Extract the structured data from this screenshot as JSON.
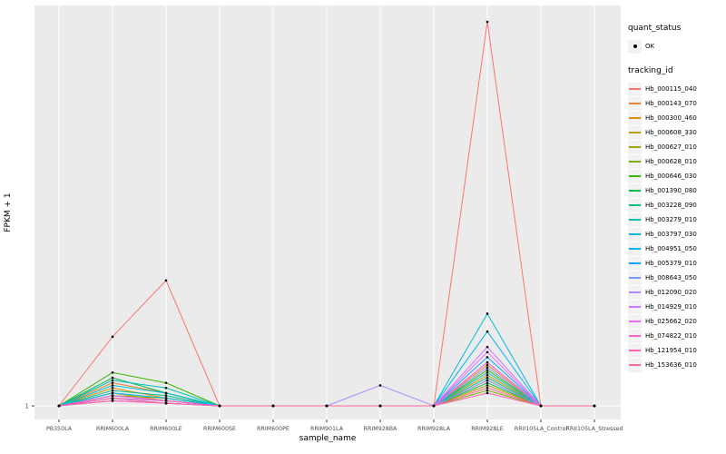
{
  "chart_data": {
    "type": "line",
    "title": "",
    "xlabel": "sample_name",
    "ylabel": "FPKM + 1",
    "ylim": [
      1,
      16.7
    ],
    "y_ticks": [
      {
        "value": 1,
        "label": "1"
      }
    ],
    "grid": true,
    "panel_bg": "#EBEBEB",
    "grid_color": "#FFFFFF",
    "point_color": "#000000",
    "tick_label_color": "#4D4D4D",
    "legend_position": "right",
    "categories": [
      "PB350LA",
      "RRIM600LA",
      "RRIM600LE",
      "RRIM600SE",
      "RRIM600PE",
      "RRIM901LA",
      "RRIM928BA",
      "RRIM928LA",
      "RRIM928LE",
      "RRII105LA_Control",
      "RRII105LA_Stressed"
    ],
    "legend": {
      "quant_status_title": "quant_status",
      "quant_ok_label": "OK",
      "tracking_id_title": "tracking_id"
    },
    "series": [
      {
        "name": "Hb_000115_040",
        "color": "#F8766D",
        "values": [
          1,
          3.7,
          5.9,
          1,
          1,
          1,
          1,
          1,
          16.0,
          1,
          1
        ]
      },
      {
        "name": "Hb_000143_070",
        "color": "#EA8331",
        "values": [
          1,
          1.9,
          1.5,
          1,
          1,
          1,
          1,
          1,
          2.6,
          1,
          1
        ]
      },
      {
        "name": "Hb_000300_460",
        "color": "#D89000",
        "values": [
          1,
          1.7,
          1.3,
          1,
          1,
          1,
          1,
          1,
          2.2,
          1,
          1
        ]
      },
      {
        "name": "Hb_000608_330",
        "color": "#C09B00",
        "values": [
          1,
          1.5,
          1.2,
          1,
          1,
          1,
          1,
          1,
          1.8,
          1,
          1
        ]
      },
      {
        "name": "Hb_000627_010",
        "color": "#A3A500",
        "values": [
          1,
          1.4,
          1.3,
          1,
          1,
          1,
          1,
          1,
          2.0,
          1,
          1
        ]
      },
      {
        "name": "Hb_000628_010",
        "color": "#7CAE00",
        "values": [
          1,
          1.3,
          1.2,
          1,
          1,
          1,
          1,
          1,
          1.6,
          1,
          1
        ]
      },
      {
        "name": "Hb_000646_030",
        "color": "#39B600",
        "values": [
          1,
          2.3,
          1.9,
          1,
          1,
          1,
          1,
          1,
          2.4,
          1,
          1
        ]
      },
      {
        "name": "Hb_001390_080",
        "color": "#00BB4E",
        "values": [
          1,
          2.1,
          1.5,
          1,
          1,
          1,
          1,
          1,
          1.9,
          1,
          1
        ]
      },
      {
        "name": "Hb_003228_090",
        "color": "#00C087",
        "values": [
          1,
          1.6,
          1.4,
          1,
          1,
          1,
          1,
          1,
          2.1,
          1,
          1
        ]
      },
      {
        "name": "Hb_003279_010",
        "color": "#00C0B2",
        "values": [
          1,
          2.0,
          1.7,
          1,
          1,
          1,
          1,
          1,
          2.3,
          1,
          1
        ]
      },
      {
        "name": "Hb_003797_030",
        "color": "#00BCD8",
        "values": [
          1,
          1.8,
          1.5,
          1,
          1,
          1,
          1,
          1,
          4.6,
          1,
          1
        ]
      },
      {
        "name": "Hb_004951_050",
        "color": "#00B4EF",
        "values": [
          1,
          1.5,
          1.3,
          1,
          1,
          1,
          1,
          1,
          3.9,
          1,
          1
        ]
      },
      {
        "name": "Hb_005379_010",
        "color": "#00A5FF",
        "values": [
          1,
          1.4,
          1.2,
          1,
          1,
          1,
          1,
          1,
          2.9,
          1,
          1
        ]
      },
      {
        "name": "Hb_008643_050",
        "color": "#7997FF",
        "values": [
          1,
          1.3,
          1.1,
          1,
          1,
          1,
          1,
          1,
          2.5,
          1,
          1
        ]
      },
      {
        "name": "Hb_012090_020",
        "color": "#AC88FF",
        "values": [
          1,
          1.2,
          1.1,
          1,
          1,
          1,
          1.8,
          1,
          2.0,
          1,
          1
        ]
      },
      {
        "name": "Hb_014929_010",
        "color": "#D277FF",
        "values": [
          1,
          1.3,
          1.2,
          1,
          1,
          1,
          1,
          1,
          3.3,
          1,
          1
        ]
      },
      {
        "name": "Hb_025662_020",
        "color": "#ED6DF1",
        "values": [
          1,
          1.2,
          1.1,
          1,
          1,
          1,
          1,
          1,
          3.1,
          1,
          1
        ]
      },
      {
        "name": "Hb_074822_010",
        "color": "#FC61D5",
        "values": [
          1,
          1.4,
          1.2,
          1,
          1,
          1,
          1,
          1,
          2.7,
          1,
          1
        ]
      },
      {
        "name": "Hb_121954_010",
        "color": "#FF62B0",
        "values": [
          1,
          1.2,
          1.1,
          1,
          1,
          1,
          1,
          1,
          1.5,
          1,
          1
        ]
      },
      {
        "name": "Hb_153636_010",
        "color": "#FF6A98",
        "values": [
          1,
          1.3,
          1.1,
          1,
          1,
          1,
          1,
          1,
          1.7,
          1,
          1
        ]
      }
    ]
  }
}
